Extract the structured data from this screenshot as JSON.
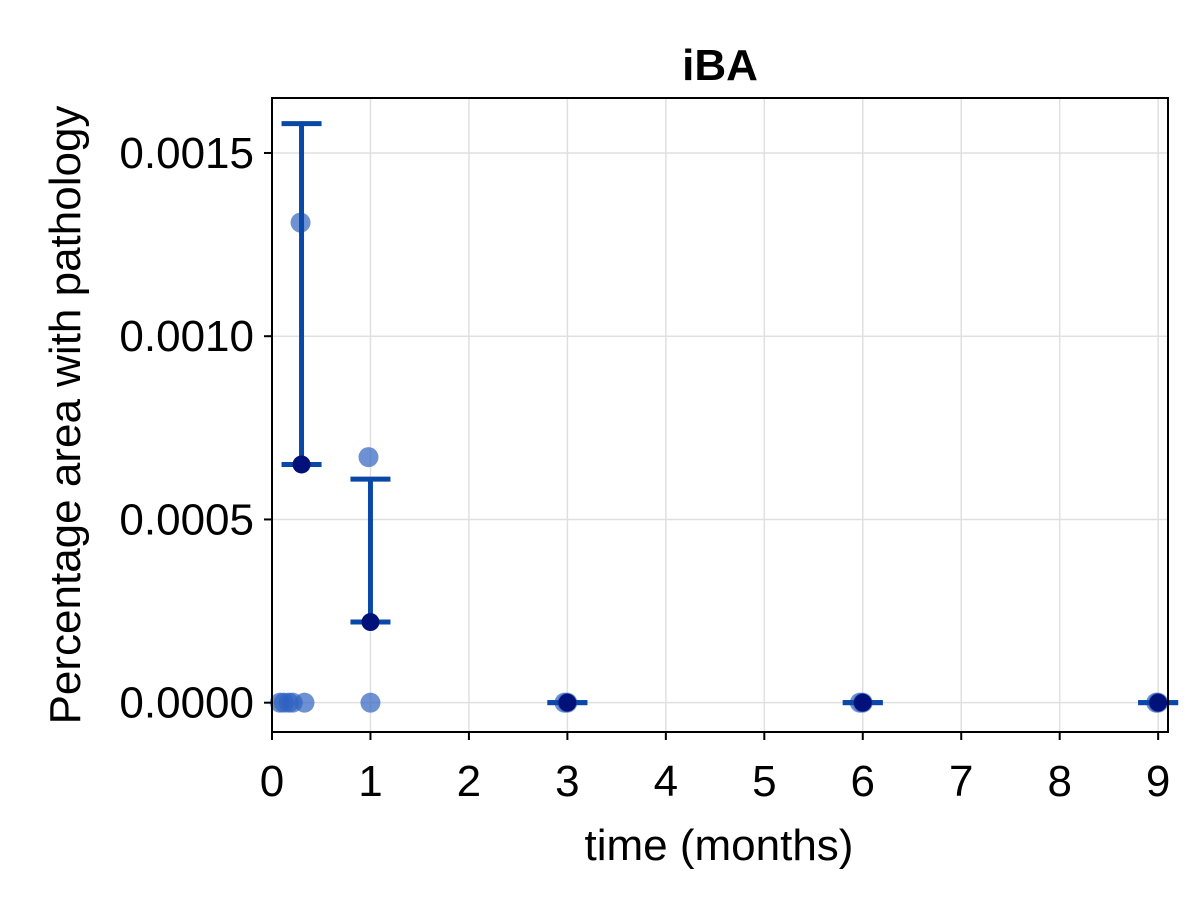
{
  "chart_data": {
    "type": "scatter",
    "title": "iBA",
    "xlabel": "time (months)",
    "ylabel": "Percentage area with pathology",
    "xlim": [
      0,
      9.1
    ],
    "ylim": [
      -8e-05,
      0.00165
    ],
    "x_ticks": [
      0,
      1,
      2,
      3,
      4,
      5,
      6,
      7,
      8,
      9
    ],
    "x_tick_labels": [
      "0",
      "1",
      "2",
      "3",
      "4",
      "5",
      "6",
      "7",
      "8",
      "9"
    ],
    "y_ticks": [
      0,
      0.0005,
      0.001,
      0.0015
    ],
    "y_tick_labels": [
      "0.0000",
      "0.0005",
      "0.0010",
      "0.0015"
    ],
    "grid": true,
    "legend": "none",
    "colors": {
      "points": "#2f63c0",
      "mean_marker": "#00127a",
      "error_bar": "#0a48a8",
      "grid": "#e0e0e0"
    },
    "series": [
      {
        "role": "individual points",
        "points": [
          {
            "x": 0.08,
            "y": 0.0
          },
          {
            "x": 0.12,
            "y": 0.0
          },
          {
            "x": 0.17,
            "y": 0.0
          },
          {
            "x": 0.21,
            "y": 0.0
          },
          {
            "x": 0.29,
            "y": 0.00131
          },
          {
            "x": 0.33,
            "y": 0.0
          },
          {
            "x": 0.98,
            "y": 0.00067
          },
          {
            "x": 1.0,
            "y": 0.0
          },
          {
            "x": 2.97,
            "y": 0.0
          },
          {
            "x": 3.0,
            "y": 0.0
          },
          {
            "x": 5.97,
            "y": 0.0
          },
          {
            "x": 6.0,
            "y": 0.0
          },
          {
            "x": 8.98,
            "y": 0.0
          },
          {
            "x": 9.0,
            "y": 0.0
          }
        ]
      },
      {
        "role": "mean with error bars",
        "points": [
          {
            "x": 0.3,
            "y": 0.00065,
            "upper": 0.00158,
            "lower": 0.00065
          },
          {
            "x": 1.0,
            "y": 0.00022,
            "upper": 0.00061,
            "lower": 0.00022
          },
          {
            "x": 3.0,
            "y": 0.0,
            "upper": 0.0,
            "lower": 0.0
          },
          {
            "x": 6.0,
            "y": 0.0,
            "upper": 0.0,
            "lower": 0.0
          },
          {
            "x": 9.0,
            "y": 0.0,
            "upper": 0.0,
            "lower": 0.0
          }
        ]
      }
    ]
  }
}
